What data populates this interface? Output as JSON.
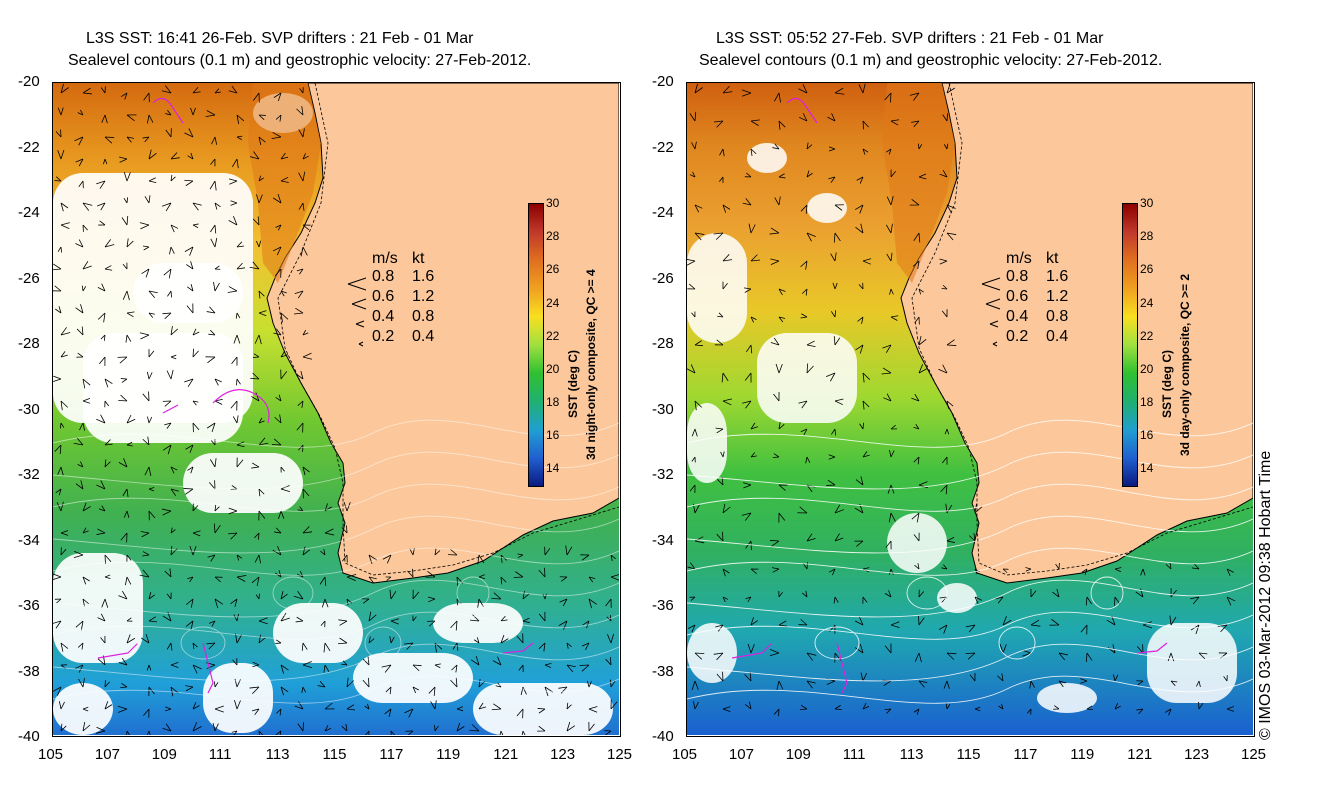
{
  "panels": [
    {
      "id": "left",
      "title_line1": "L3S SST: 16:41 26-Feb. SVP drifters : 21 Feb - 01 Mar",
      "title_line2": "Sealevel contours (0.1 m) and geostrophic velocity: 27-Feb-2012.",
      "colorbar_title_line1": "SST (deg C)",
      "colorbar_title_line2": "3d night-only composite, QC >= 4"
    },
    {
      "id": "right",
      "title_line1": "L3S SST: 05:52 27-Feb. SVP drifters : 21 Feb - 01 Mar",
      "title_line2": "Sealevel contours (0.1 m) and geostrophic velocity: 27-Feb-2012.",
      "colorbar_title_line1": "SST (deg C)",
      "colorbar_title_line2": "3d day-only composite, QC >= 2"
    }
  ],
  "axes": {
    "lat_ticks": [
      "-20",
      "-22",
      "-24",
      "-26",
      "-28",
      "-30",
      "-32",
      "-34",
      "-36",
      "-38",
      "-40"
    ],
    "lon_ticks": [
      "105",
      "107",
      "109",
      "111",
      "113",
      "115",
      "117",
      "119",
      "121",
      "123",
      "125"
    ],
    "lat_range": [
      -40,
      -20
    ],
    "lon_range": [
      105,
      125
    ]
  },
  "colorbar": {
    "ticks": [
      "30",
      "28",
      "26",
      "24",
      "22",
      "20",
      "18",
      "16",
      "14"
    ],
    "range": [
      13,
      30
    ],
    "stops": [
      "#8b0000",
      "#c0392b",
      "#e07020",
      "#f0a020",
      "#f8e020",
      "#a0e040",
      "#30c030",
      "#20b070",
      "#20a0d0",
      "#2060d0",
      "#0a1a80"
    ]
  },
  "legend": {
    "header_ms": "m/s",
    "header_kt": "kt",
    "rows": [
      {
        "ms": "0.8",
        "kt": "1.6"
      },
      {
        "ms": "0.6",
        "kt": "1.2"
      },
      {
        "ms": "0.4",
        "kt": "0.8"
      },
      {
        "ms": "0.2",
        "kt": "0.4"
      }
    ]
  },
  "colors": {
    "land": "#fcc89b",
    "water_bg": "#ffffff"
  },
  "copyright": "© IMOS 03-Mar-2012 09:38 Hobart Time"
}
